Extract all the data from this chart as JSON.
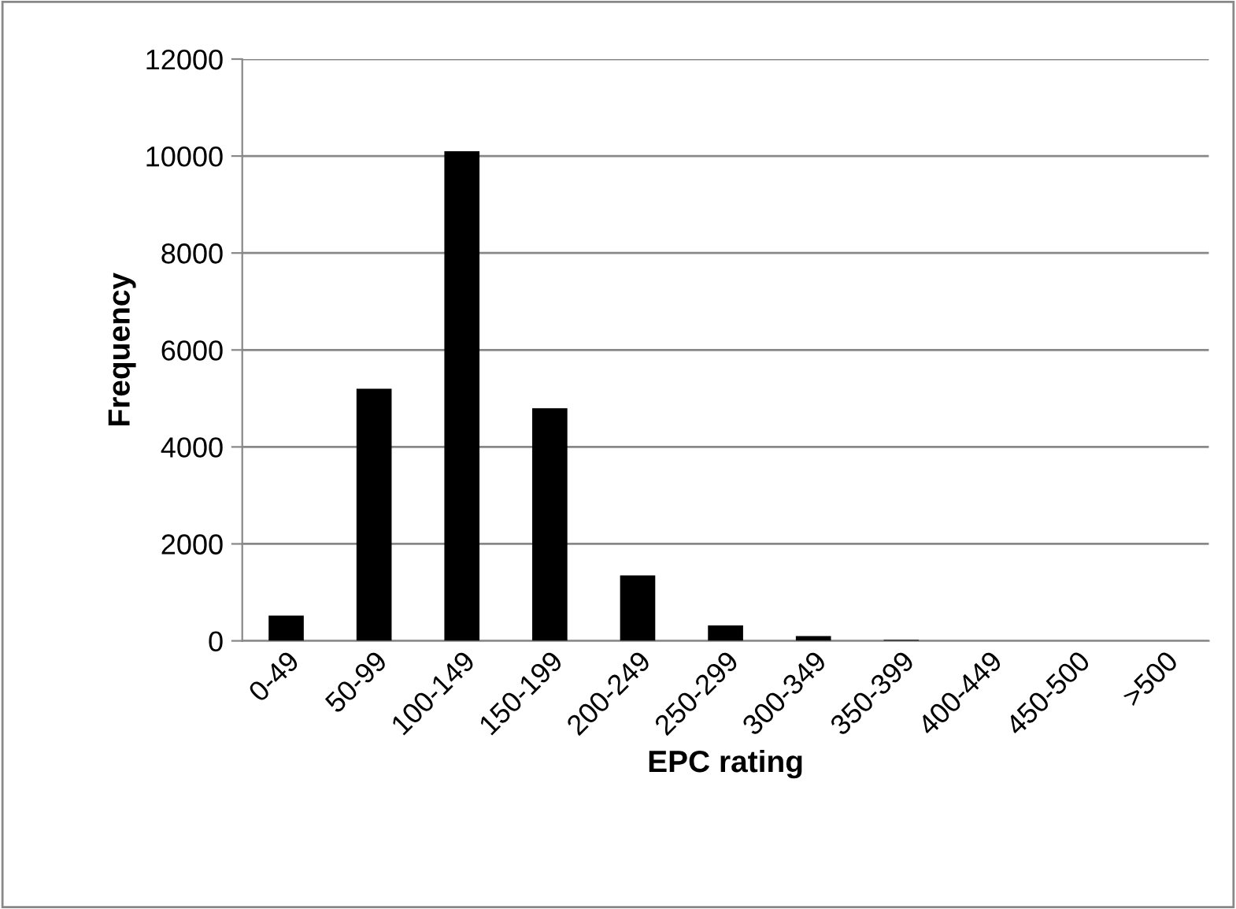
{
  "chart_data": {
    "type": "bar",
    "xlabel": "EPC rating",
    "ylabel": "Frequency",
    "categories": [
      "0-49",
      "50-99",
      "100-149",
      "150-199",
      "200-249",
      "250-299",
      "300-349",
      "350-399",
      "400-449",
      "450-500",
      ">500"
    ],
    "values": [
      520,
      5200,
      10100,
      4800,
      1350,
      320,
      100,
      20,
      null,
      null,
      null
    ],
    "color": "#000000",
    "ylim": [
      0,
      12000
    ],
    "yticks": [
      0,
      2000,
      4000,
      6000,
      8000,
      10000,
      12000
    ],
    "grid": "y",
    "legend": false
  }
}
